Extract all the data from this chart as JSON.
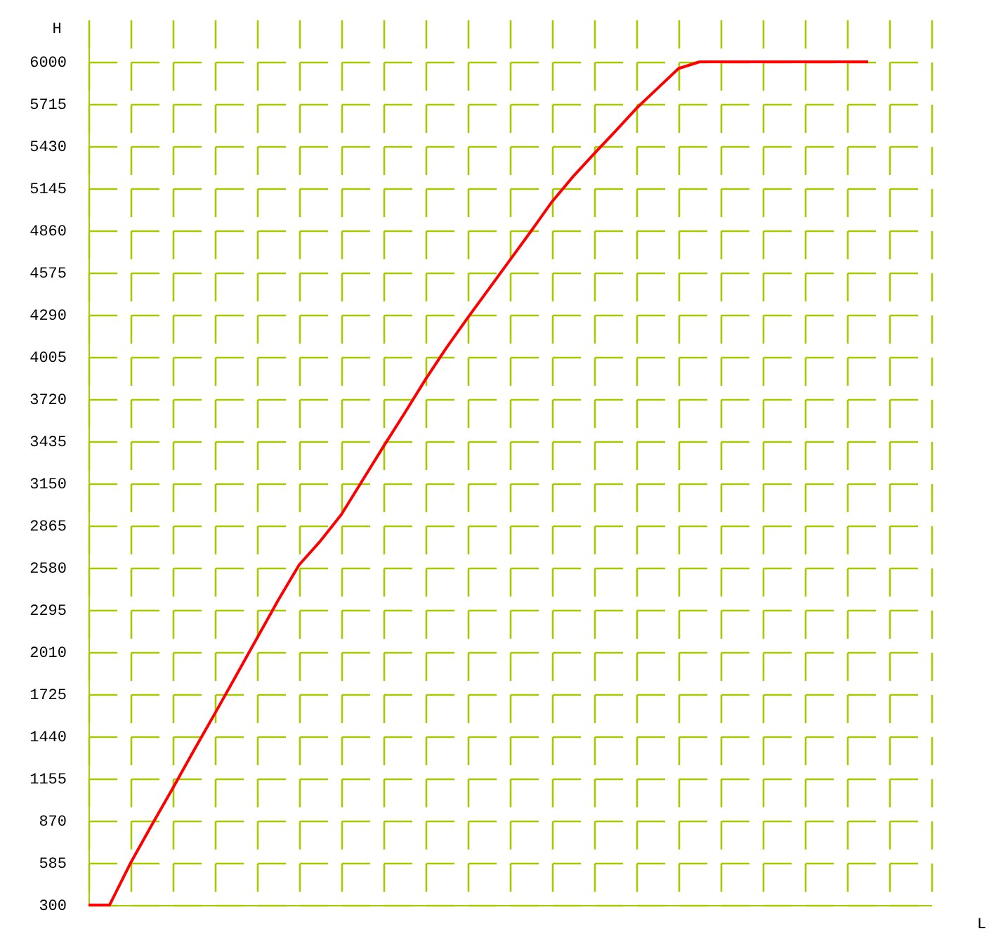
{
  "chart_data": {
    "type": "line",
    "xlabel": "L",
    "ylabel": "H",
    "categories": [
      null,
      null,
      null,
      null,
      null,
      null,
      null,
      null,
      null,
      null,
      null,
      null,
      null,
      null,
      null,
      null,
      null,
      null,
      null,
      null,
      null,
      null,
      null,
      null,
      null,
      null,
      null,
      null,
      null,
      null,
      null,
      null,
      null,
      null,
      null,
      null,
      null,
      null,
      null,
      null,
      null
    ],
    "series": [
      {
        "color": "#ff0000",
        "values": [
          300,
          300,
          585,
          840,
          1090,
          1345,
          1595,
          1850,
          2105,
          2360,
          2600,
          2760,
          2940,
          3170,
          3400,
          3625,
          3855,
          4070,
          4270,
          4465,
          4660,
          4855,
          5055,
          5225,
          5380,
          5530,
          5685,
          5820,
          5955,
          6000,
          6000,
          6000,
          6000,
          6000,
          6000,
          6000,
          6000,
          6000,
          null,
          null,
          null
        ]
      }
    ],
    "ylim": [
      300,
      6285
    ],
    "yticks": [
      300,
      585,
      870,
      1155,
      1440,
      1725,
      2010,
      2295,
      2580,
      2865,
      3150,
      3435,
      3720,
      4005,
      4290,
      4575,
      4860,
      5145,
      5430,
      5715,
      6000
    ],
    "grid": true,
    "tick_labels": "y",
    "marker": "none",
    "line_style": "solid"
  }
}
